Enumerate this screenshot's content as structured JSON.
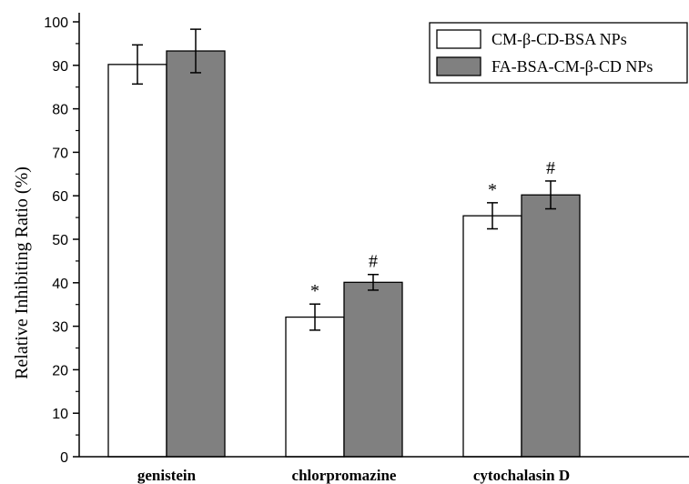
{
  "chart_data": {
    "type": "bar",
    "title": "",
    "xlabel": "",
    "ylabel": "Relative Inhibiting Ratio (%)",
    "ylim": [
      0,
      100
    ],
    "yticks": [
      0,
      10,
      20,
      30,
      40,
      50,
      60,
      70,
      80,
      90,
      100
    ],
    "categories": [
      "genistein",
      "chlorpromazine",
      "cytochalasin D"
    ],
    "series": [
      {
        "name": "CM-β-CD-BSA NPs",
        "color": "#ffffff",
        "values": [
          90.2,
          32.1,
          55.4
        ],
        "errors": [
          4.5,
          3.0,
          3.0
        ],
        "annotations": [
          "",
          "*",
          "*"
        ]
      },
      {
        "name": "FA-BSA-CM-β-CD NPs",
        "color": "#808080",
        "values": [
          93.3,
          40.1,
          60.2
        ],
        "errors": [
          5.0,
          1.8,
          3.2
        ],
        "annotations": [
          "",
          "#",
          "#"
        ]
      }
    ],
    "legend_position": "top-right"
  }
}
